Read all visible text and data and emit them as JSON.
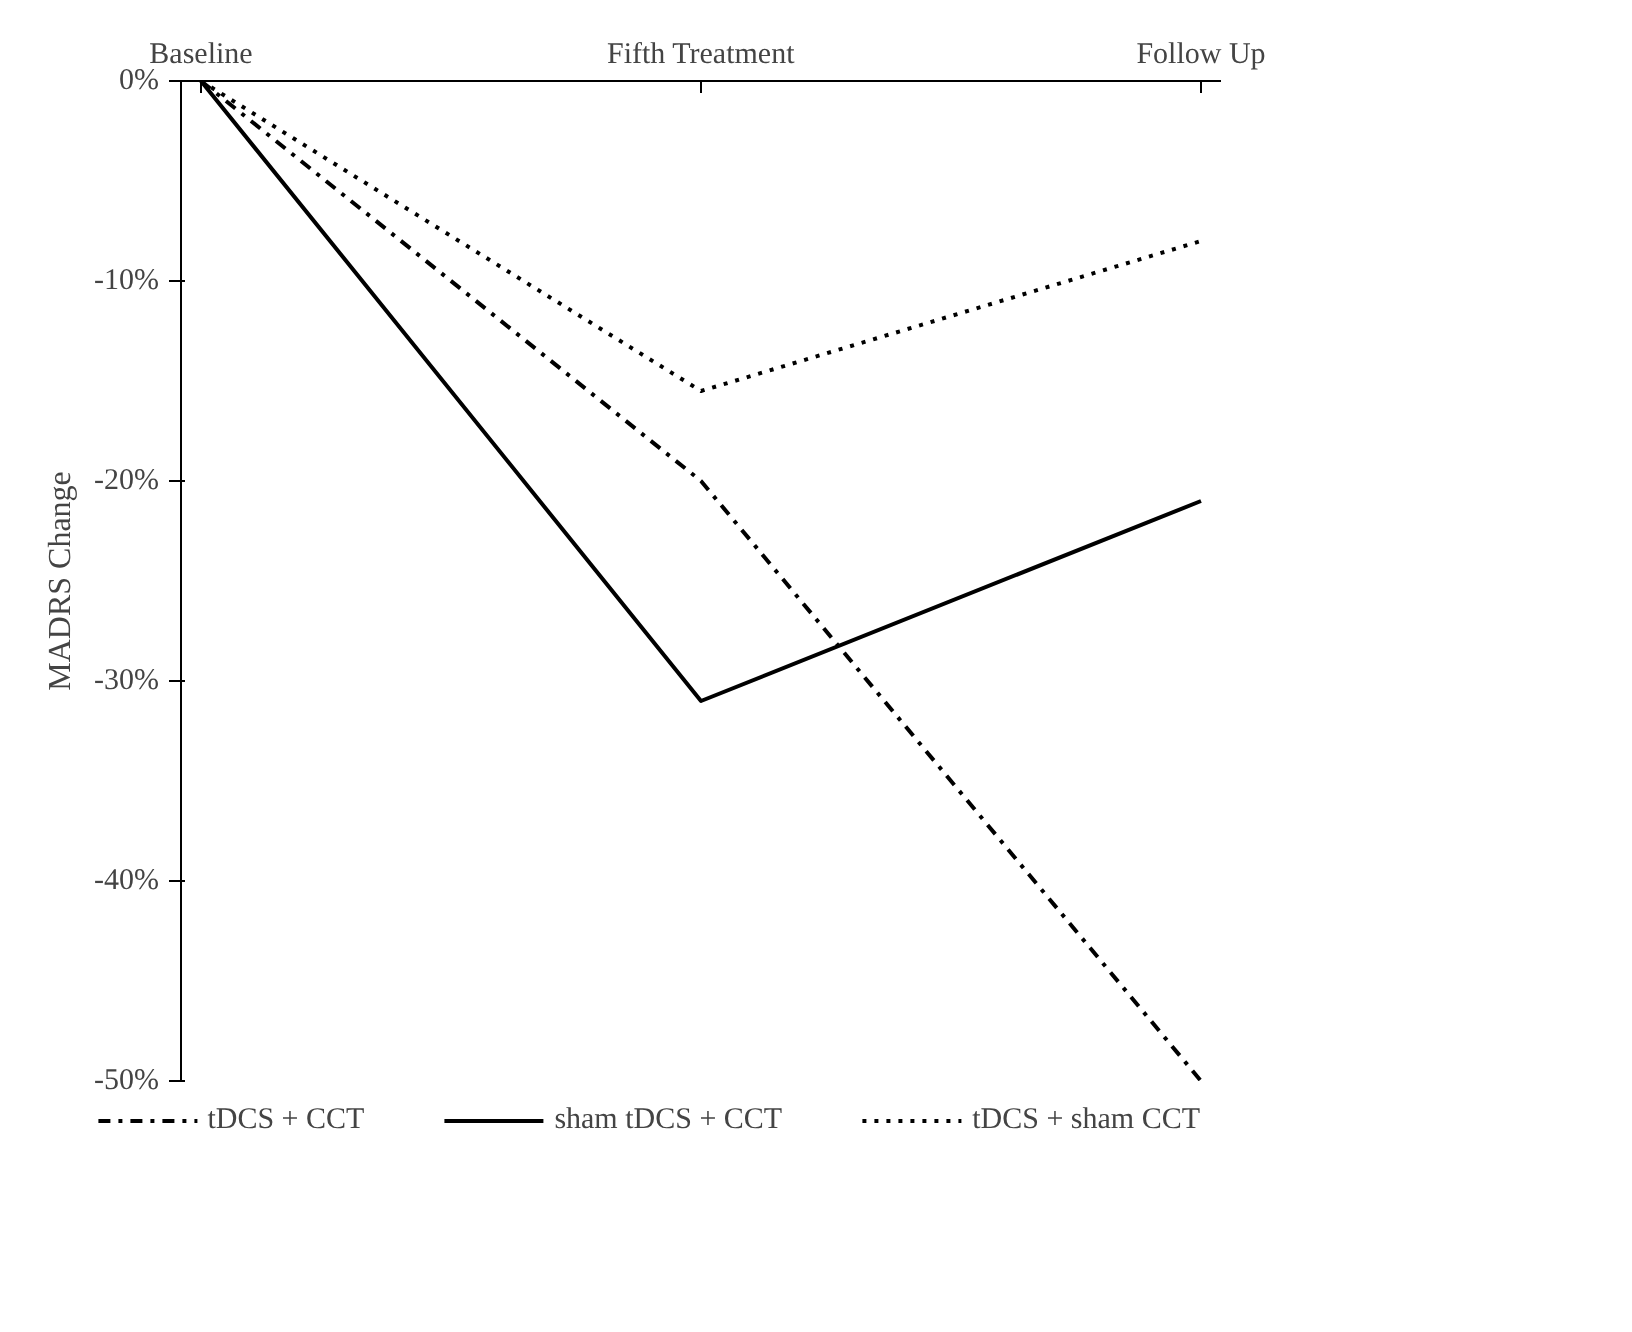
{
  "chart_data": {
    "type": "line",
    "ylabel": "MADRS Change",
    "categories": [
      "Baseline",
      "Fifth Treatment",
      "Follow Up"
    ],
    "series": [
      {
        "name": "tDCS + CCT",
        "color": "#000000",
        "values": [
          0,
          -20,
          -50
        ],
        "line_style": "dashdot"
      },
      {
        "name": "sham tDCS + CCT",
        "color": "#000000",
        "values": [
          0,
          -31,
          -21
        ],
        "line_style": "solid"
      },
      {
        "name": "tDCS + sham CCT",
        "color": "#000000",
        "values": [
          0,
          -15.5,
          -8
        ],
        "line_style": "dotted"
      }
    ],
    "ylim": [
      -50,
      0
    ],
    "yticks": [
      {
        "value": 0,
        "label": "0%"
      },
      {
        "value": -10,
        "label": "-10%"
      },
      {
        "value": -20,
        "label": "-20%"
      },
      {
        "value": -30,
        "label": "-30%"
      },
      {
        "value": -40,
        "label": "-40%"
      },
      {
        "value": -50,
        "label": "-50%"
      }
    ],
    "grid": false,
    "legend": "bottom",
    "marker": "none"
  }
}
